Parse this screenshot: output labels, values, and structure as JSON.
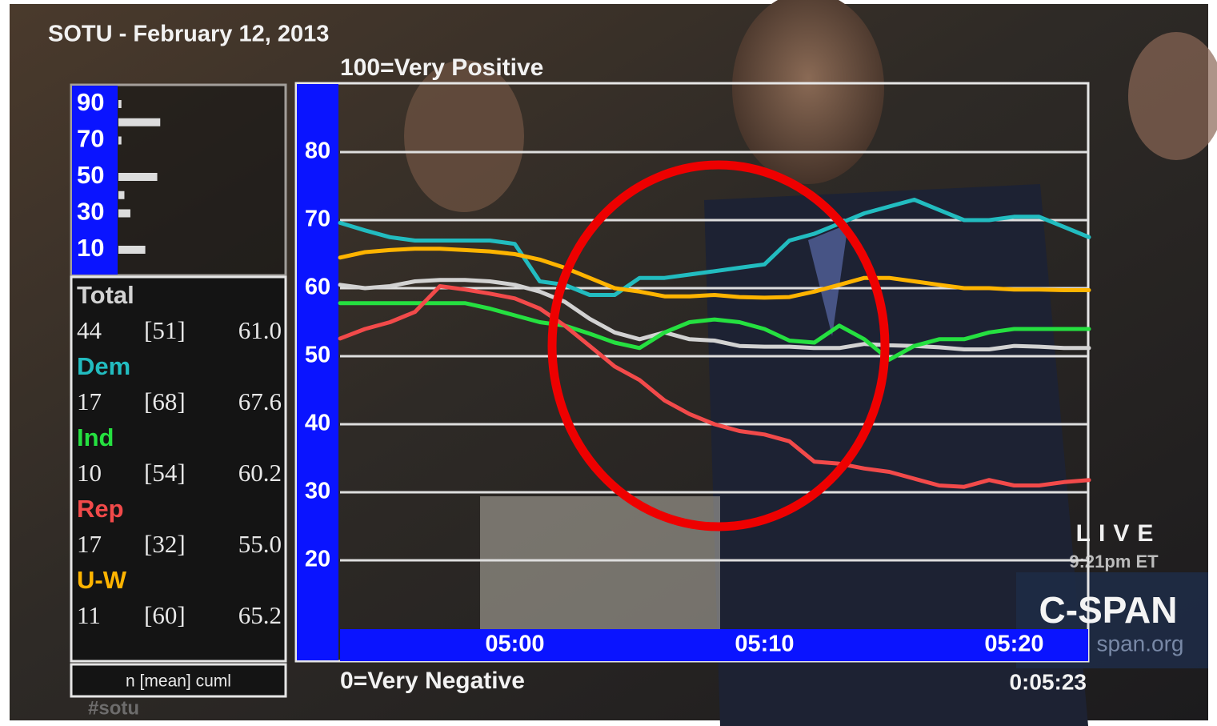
{
  "chart_data": [
    {
      "type": "line",
      "title": "SOTU - February 12, 2013",
      "annotations": [
        "100=Very Positive",
        "0=Very Negative",
        "0:05:23"
      ],
      "x": [
        293,
        294,
        295,
        296,
        297,
        298,
        299,
        300,
        301,
        302,
        303,
        304,
        305,
        306,
        307,
        308,
        309,
        310,
        311,
        312,
        313,
        314,
        315,
        316,
        317,
        318,
        319,
        320,
        321,
        322,
        323
      ],
      "xlim": [
        293,
        323
      ],
      "xticks": [
        {
          "value": 300,
          "label": "05:00"
        },
        {
          "value": 310,
          "label": "05:10"
        },
        {
          "value": 320,
          "label": "05:20"
        }
      ],
      "ylim": [
        10,
        90
      ],
      "yticks": [
        20,
        30,
        40,
        50,
        60,
        70,
        80
      ],
      "grid": true,
      "series": [
        {
          "name": "Total",
          "color": "#d2d2d2",
          "stats": [
            "44",
            "[51]",
            "61.0"
          ],
          "values": [
            60.5,
            60,
            60.3,
            61,
            61.2,
            61.2,
            61,
            60.5,
            59.5,
            58,
            55.5,
            53.5,
            52.5,
            53.5,
            52.5,
            52.3,
            51.5,
            51.4,
            51.4,
            51.2,
            51.2,
            51.8,
            51.6,
            51.5,
            51.3,
            51,
            51,
            51.5,
            51.4,
            51.2,
            51.2
          ]
        },
        {
          "name": "Dem",
          "color": "#22bcc0",
          "stats": [
            "17",
            "[68]",
            "67.6"
          ],
          "values": [
            69.6,
            68.5,
            67.5,
            67,
            67,
            67,
            67,
            66.5,
            61,
            60.5,
            59,
            59,
            61.5,
            61.5,
            62,
            62.5,
            63,
            63.5,
            67,
            68,
            69.5,
            71,
            72,
            73,
            71.5,
            70,
            70,
            70.5,
            70.5,
            69,
            67.5
          ]
        },
        {
          "name": "Ind",
          "color": "#25e040",
          "stats": [
            "10",
            "[54]",
            "60.2"
          ],
          "values": [
            57.8,
            57.8,
            57.8,
            57.8,
            57.8,
            57.8,
            57,
            56,
            55,
            54.5,
            53.3,
            52,
            51.2,
            53.5,
            55,
            55.4,
            55,
            54,
            52.3,
            52,
            54.5,
            52.5,
            49.5,
            51.5,
            52.5,
            52.5,
            53.5,
            54,
            54,
            54,
            54
          ]
        },
        {
          "name": "Rep",
          "color": "#f24a4a",
          "stats": [
            "17",
            "[32]",
            "55.0"
          ],
          "values": [
            52.6,
            54,
            55,
            56.5,
            60.3,
            59.8,
            59.2,
            58.5,
            57,
            54.5,
            51.5,
            48.5,
            46.5,
            43.5,
            41.5,
            40,
            39,
            38.5,
            37.5,
            34.5,
            34.2,
            33.5,
            33,
            32,
            31,
            30.8,
            31.8,
            31,
            31,
            31.5,
            31.8
          ]
        },
        {
          "name": "U-W",
          "color": "#ffb400",
          "stats": [
            "11",
            "[60]",
            "65.2"
          ],
          "values": [
            64.5,
            65.3,
            65.6,
            65.8,
            65.8,
            65.6,
            65.4,
            65,
            64.2,
            63,
            61.5,
            60,
            59.5,
            58.8,
            58.8,
            59,
            58.7,
            58.6,
            58.7,
            59.5,
            60.5,
            61.5,
            61.5,
            61,
            60.5,
            60,
            60,
            59.8,
            59.8,
            59.7,
            59.7
          ]
        }
      ]
    },
    {
      "type": "hbar",
      "y": [
        90,
        80,
        70,
        60,
        50,
        40,
        30,
        20,
        10
      ],
      "values": [
        1,
        14,
        1,
        0,
        13,
        2,
        4,
        0,
        9
      ],
      "color": "#dcdcdc",
      "ylim": [
        10,
        90
      ],
      "yticks": [
        90,
        70,
        50,
        30,
        10
      ],
      "xlim": [
        0,
        15
      ]
    }
  ],
  "table": {
    "footer": "n [mean] cuml"
  },
  "broadcast": {
    "live": "LIVE",
    "time": "9:21pm ET",
    "network": "C-SPAN",
    "site": "span.org",
    "hashtag": "#sotu"
  }
}
